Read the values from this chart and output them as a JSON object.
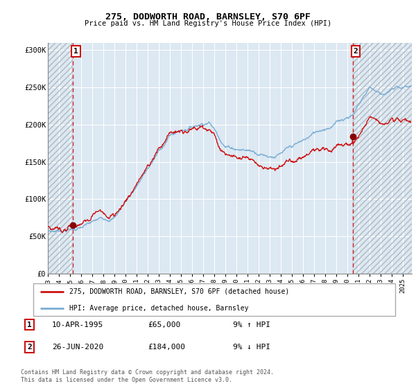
{
  "title": "275, DODWORTH ROAD, BARNSLEY, S70 6PF",
  "subtitle": "Price paid vs. HM Land Registry's House Price Index (HPI)",
  "ylim": [
    0,
    310000
  ],
  "xlim_start": 1993.0,
  "xlim_end": 2025.8,
  "sale1_date": 1995.27,
  "sale1_price": 65000,
  "sale2_date": 2020.48,
  "sale2_price": 184000,
  "hpi_color": "#7aadd4",
  "price_color": "#cc1111",
  "marker_color": "#880000",
  "dashed_line_color": "#cc2222",
  "bg_color": "#dce8f2",
  "grid_color": "#ffffff",
  "legend_label_price": "275, DODWORTH ROAD, BARNSLEY, S70 6PF (detached house)",
  "legend_label_hpi": "HPI: Average price, detached house, Barnsley",
  "note1_date": "10-APR-1995",
  "note1_price": "£65,000",
  "note1_hpi": "9% ↑ HPI",
  "note2_date": "26-JUN-2020",
  "note2_price": "£184,000",
  "note2_hpi": "9% ↓ HPI",
  "footer": "Contains HM Land Registry data © Crown copyright and database right 2024.\nThis data is licensed under the Open Government Licence v3.0.",
  "yticks": [
    0,
    50000,
    100000,
    150000,
    200000,
    250000,
    300000
  ],
  "ytick_labels": [
    "£0",
    "£50K",
    "£100K",
    "£150K",
    "£200K",
    "£250K",
    "£300K"
  ]
}
